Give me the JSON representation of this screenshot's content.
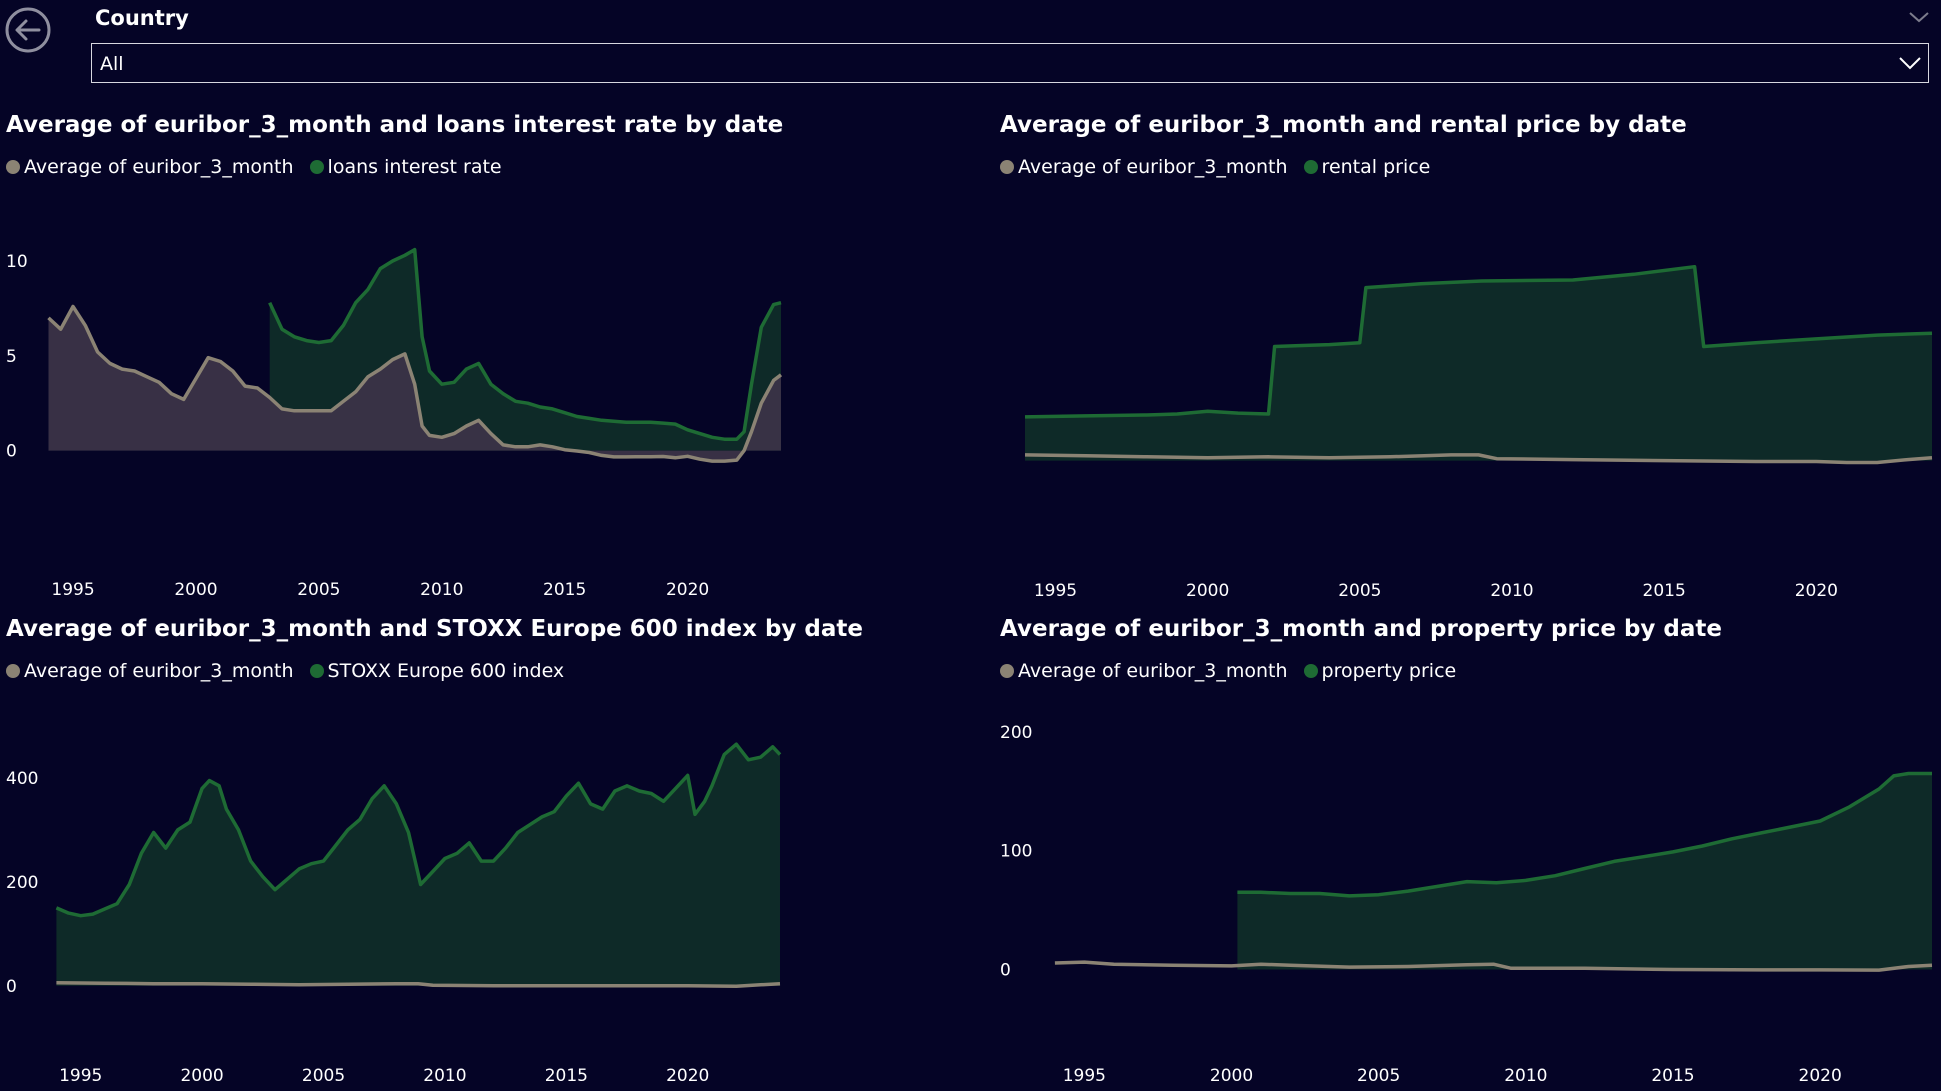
{
  "filter": {
    "label": "Country",
    "selected": "All"
  },
  "colors": {
    "background": "#050426",
    "euribor": "#8b8374",
    "series": "#1e6b34",
    "series_fill": "#0e2a28",
    "euribor_fill": "#3b3347"
  },
  "charts": [
    {
      "title": "Average of euribor_3_month and loans interest rate by date",
      "legend": [
        "Average of euribor_3_month",
        "loans interest rate"
      ]
    },
    {
      "title": "Average of euribor_3_month and rental price by date",
      "legend": [
        "Average of euribor_3_month",
        "rental price"
      ]
    },
    {
      "title": "Average of euribor_3_month and STOXX Europe 600 index by date",
      "legend": [
        "Average of euribor_3_month",
        "STOXX Europe 600 index"
      ]
    },
    {
      "title": "Average of euribor_3_month and property price by date",
      "legend": [
        "Average of euribor_3_month",
        "property price"
      ]
    }
  ],
  "chart_data": [
    {
      "type": "area",
      "title": "Average of euribor_3_month and loans interest rate by date",
      "ylim": [
        -0.6,
        11
      ],
      "yticks": [
        0,
        5,
        10
      ],
      "xlim": [
        1993.9,
        2023.8
      ],
      "xticks": [
        1995,
        2000,
        2005,
        2010,
        2015,
        2020
      ],
      "series": [
        {
          "name": "Average of euribor_3_month",
          "x": [
            1994,
            1994.5,
            1995,
            1995.5,
            1996,
            1996.5,
            1997,
            1997.5,
            1998,
            1998.5,
            1999,
            1999.5,
            2000,
            2000.5,
            2001,
            2001.5,
            2002,
            2002.5,
            2003,
            2003.5,
            2004,
            2004.5,
            2005,
            2005.5,
            2006,
            2006.5,
            2007,
            2007.5,
            2008,
            2008.5,
            2008.9,
            2009.2,
            2009.5,
            2010,
            2010.5,
            2011,
            2011.5,
            2012,
            2012.5,
            2013,
            2013.5,
            2014,
            2014.5,
            2015,
            2015.5,
            2016,
            2016.5,
            2017,
            2017.5,
            2018,
            2018.5,
            2019,
            2019.5,
            2020,
            2020.5,
            2021,
            2021.5,
            2022,
            2022.3,
            2022.6,
            2023,
            2023.5,
            2023.8
          ],
          "values": [
            7.0,
            6.4,
            7.6,
            6.6,
            5.2,
            4.6,
            4.3,
            4.2,
            3.9,
            3.6,
            3.0,
            2.7,
            3.8,
            4.9,
            4.7,
            4.2,
            3.4,
            3.3,
            2.8,
            2.2,
            2.1,
            2.1,
            2.1,
            2.1,
            2.6,
            3.1,
            3.9,
            4.3,
            4.8,
            5.1,
            3.5,
            1.3,
            0.8,
            0.7,
            0.9,
            1.3,
            1.6,
            0.9,
            0.3,
            0.2,
            0.2,
            0.3,
            0.2,
            0.05,
            -0.02,
            -0.1,
            -0.25,
            -0.33,
            -0.33,
            -0.32,
            -0.32,
            -0.31,
            -0.38,
            -0.3,
            -0.45,
            -0.55,
            -0.55,
            -0.5,
            0.0,
            1.0,
            2.5,
            3.7,
            4.0
          ]
        },
        {
          "name": "loans interest rate",
          "x": [
            2003,
            2003.5,
            2004,
            2004.5,
            2005,
            2005.5,
            2006,
            2006.5,
            2007,
            2007.5,
            2008,
            2008.5,
            2008.9,
            2009.2,
            2009.5,
            2010,
            2010.5,
            2011,
            2011.5,
            2012,
            2012.5,
            2013,
            2013.5,
            2014,
            2014.5,
            2015,
            2015.5,
            2016,
            2016.5,
            2017,
            2017.5,
            2018,
            2018.5,
            2019,
            2019.5,
            2020,
            2020.5,
            2021,
            2021.5,
            2022,
            2022.3,
            2022.6,
            2023,
            2023.5,
            2023.8
          ],
          "values": [
            7.8,
            6.4,
            6.0,
            5.8,
            5.7,
            5.8,
            6.6,
            7.8,
            8.5,
            9.6,
            10.0,
            10.3,
            10.6,
            6.0,
            4.2,
            3.5,
            3.6,
            4.3,
            4.6,
            3.5,
            3.0,
            2.6,
            2.5,
            2.3,
            2.2,
            2.0,
            1.8,
            1.7,
            1.6,
            1.55,
            1.5,
            1.5,
            1.5,
            1.45,
            1.4,
            1.1,
            0.9,
            0.7,
            0.6,
            0.6,
            1.0,
            3.5,
            6.5,
            7.7,
            7.8
          ]
        }
      ]
    },
    {
      "type": "area",
      "title": "Average of euribor_3_month and rental price by date",
      "ylim": [
        -0.6,
        11.5
      ],
      "yticks": [],
      "xlim": [
        1993.9,
        2023.8
      ],
      "xticks": [
        1995,
        2000,
        2005,
        2010,
        2015,
        2020
      ],
      "series": [
        {
          "name": "Average of euribor_3_month",
          "x": [
            1994,
            1996,
            1998,
            2000,
            2002,
            2004,
            2006,
            2008,
            2008.9,
            2009.5,
            2012,
            2015,
            2018,
            2020,
            2021,
            2022,
            2023,
            2023.8
          ],
          "values": [
            0.3,
            0.25,
            0.2,
            0.15,
            0.2,
            0.15,
            0.2,
            0.3,
            0.3,
            0.1,
            0.05,
            0.0,
            -0.05,
            -0.05,
            -0.1,
            -0.1,
            0.05,
            0.15
          ]
        },
        {
          "name": "rental price",
          "x": [
            1994,
            1996,
            1998,
            1999,
            2000,
            2001,
            2002,
            2002.2,
            2003,
            2004,
            2005,
            2005.2,
            2007,
            2009,
            2012,
            2014,
            2016,
            2016.3,
            2018,
            2020,
            2022,
            2023.8
          ],
          "values": [
            2.3,
            2.35,
            2.4,
            2.45,
            2.6,
            2.5,
            2.45,
            6.0,
            6.05,
            6.1,
            6.2,
            9.1,
            9.3,
            9.45,
            9.5,
            9.8,
            10.2,
            6.0,
            6.2,
            6.4,
            6.6,
            6.7
          ]
        }
      ]
    },
    {
      "type": "area",
      "title": "Average of euribor_3_month and STOXX Europe 600 index by date",
      "ylim": [
        -10,
        500
      ],
      "yticks": [
        0,
        200,
        400
      ],
      "xlim": [
        1993.9,
        2023.8
      ],
      "xticks": [
        1995,
        2000,
        2005,
        2010,
        2015,
        2020
      ],
      "series": [
        {
          "name": "Average of euribor_3_month",
          "x": [
            1994,
            1996,
            1998,
            2000,
            2002,
            2004,
            2006,
            2008,
            2008.9,
            2009.5,
            2012,
            2015,
            2018,
            2020,
            2022,
            2023,
            2023.8
          ],
          "values": [
            6,
            5,
            4,
            4,
            3,
            2,
            3,
            4,
            4,
            1,
            0,
            0,
            0,
            0,
            -1,
            2,
            4
          ]
        },
        {
          "name": "STOXX Europe 600 index",
          "x": [
            1994,
            1994.5,
            1995,
            1995.5,
            1996,
            1996.5,
            1997,
            1997.5,
            1998,
            1998.5,
            1999,
            1999.5,
            2000,
            2000.3,
            2000.7,
            2001,
            2001.5,
            2002,
            2002.5,
            2003,
            2003.5,
            2004,
            2004.5,
            2005,
            2005.5,
            2006,
            2006.5,
            2007,
            2007.5,
            2008,
            2008.5,
            2009,
            2009.5,
            2010,
            2010.5,
            2011,
            2011.5,
            2012,
            2012.5,
            2013,
            2013.5,
            2014,
            2014.5,
            2015,
            2015.5,
            2016,
            2016.5,
            2017,
            2017.5,
            2018,
            2018.5,
            2019,
            2019.5,
            2020,
            2020.3,
            2020.7,
            2021,
            2021.5,
            2022,
            2022.5,
            2023,
            2023.5,
            2023.8
          ],
          "values": [
            150,
            140,
            135,
            138,
            148,
            158,
            195,
            255,
            295,
            265,
            300,
            315,
            380,
            395,
            385,
            340,
            300,
            240,
            210,
            185,
            205,
            225,
            235,
            240,
            270,
            300,
            320,
            360,
            385,
            350,
            295,
            195,
            220,
            245,
            255,
            275,
            240,
            240,
            265,
            295,
            310,
            325,
            335,
            365,
            390,
            350,
            340,
            375,
            385,
            375,
            370,
            355,
            380,
            405,
            330,
            355,
            385,
            445,
            465,
            435,
            440,
            460,
            445
          ]
        }
      ]
    },
    {
      "type": "area",
      "title": "Average of euribor_3_month and property price by date",
      "ylim": [
        -8,
        205
      ],
      "yticks": [
        0,
        100,
        200
      ],
      "xlim": [
        1993.9,
        2023.8
      ],
      "xticks": [
        1995,
        2000,
        2005,
        2010,
        2015,
        2020
      ],
      "series": [
        {
          "name": "Average of euribor_3_month",
          "x": [
            1994,
            1995,
            1996,
            1998,
            2000,
            2001,
            2002,
            2004,
            2006,
            2008,
            2008.9,
            2009.5,
            2012,
            2015,
            2018,
            2020,
            2022,
            2023,
            2023.8
          ],
          "values": [
            5.5,
            6.2,
            4.5,
            3.5,
            3.0,
            4.5,
            3.5,
            2.0,
            2.5,
            4.0,
            4.5,
            1.0,
            1.0,
            0.0,
            -0.3,
            -0.3,
            -0.5,
            2.5,
            3.5
          ]
        },
        {
          "name": "property price",
          "x": [
            2000.2,
            2001,
            2002,
            2003,
            2004,
            2005,
            2006,
            2007,
            2008,
            2009,
            2010,
            2011,
            2012,
            2013,
            2014,
            2015,
            2016,
            2017,
            2018,
            2019,
            2020,
            2021,
            2022,
            2022.5,
            2023,
            2023.8
          ],
          "values": [
            65,
            65,
            64,
            64,
            62,
            63,
            66,
            70,
            74,
            73,
            75,
            79,
            85,
            91,
            95,
            99,
            104,
            110,
            115,
            120,
            125,
            137,
            152,
            163,
            165,
            165
          ]
        }
      ]
    }
  ]
}
